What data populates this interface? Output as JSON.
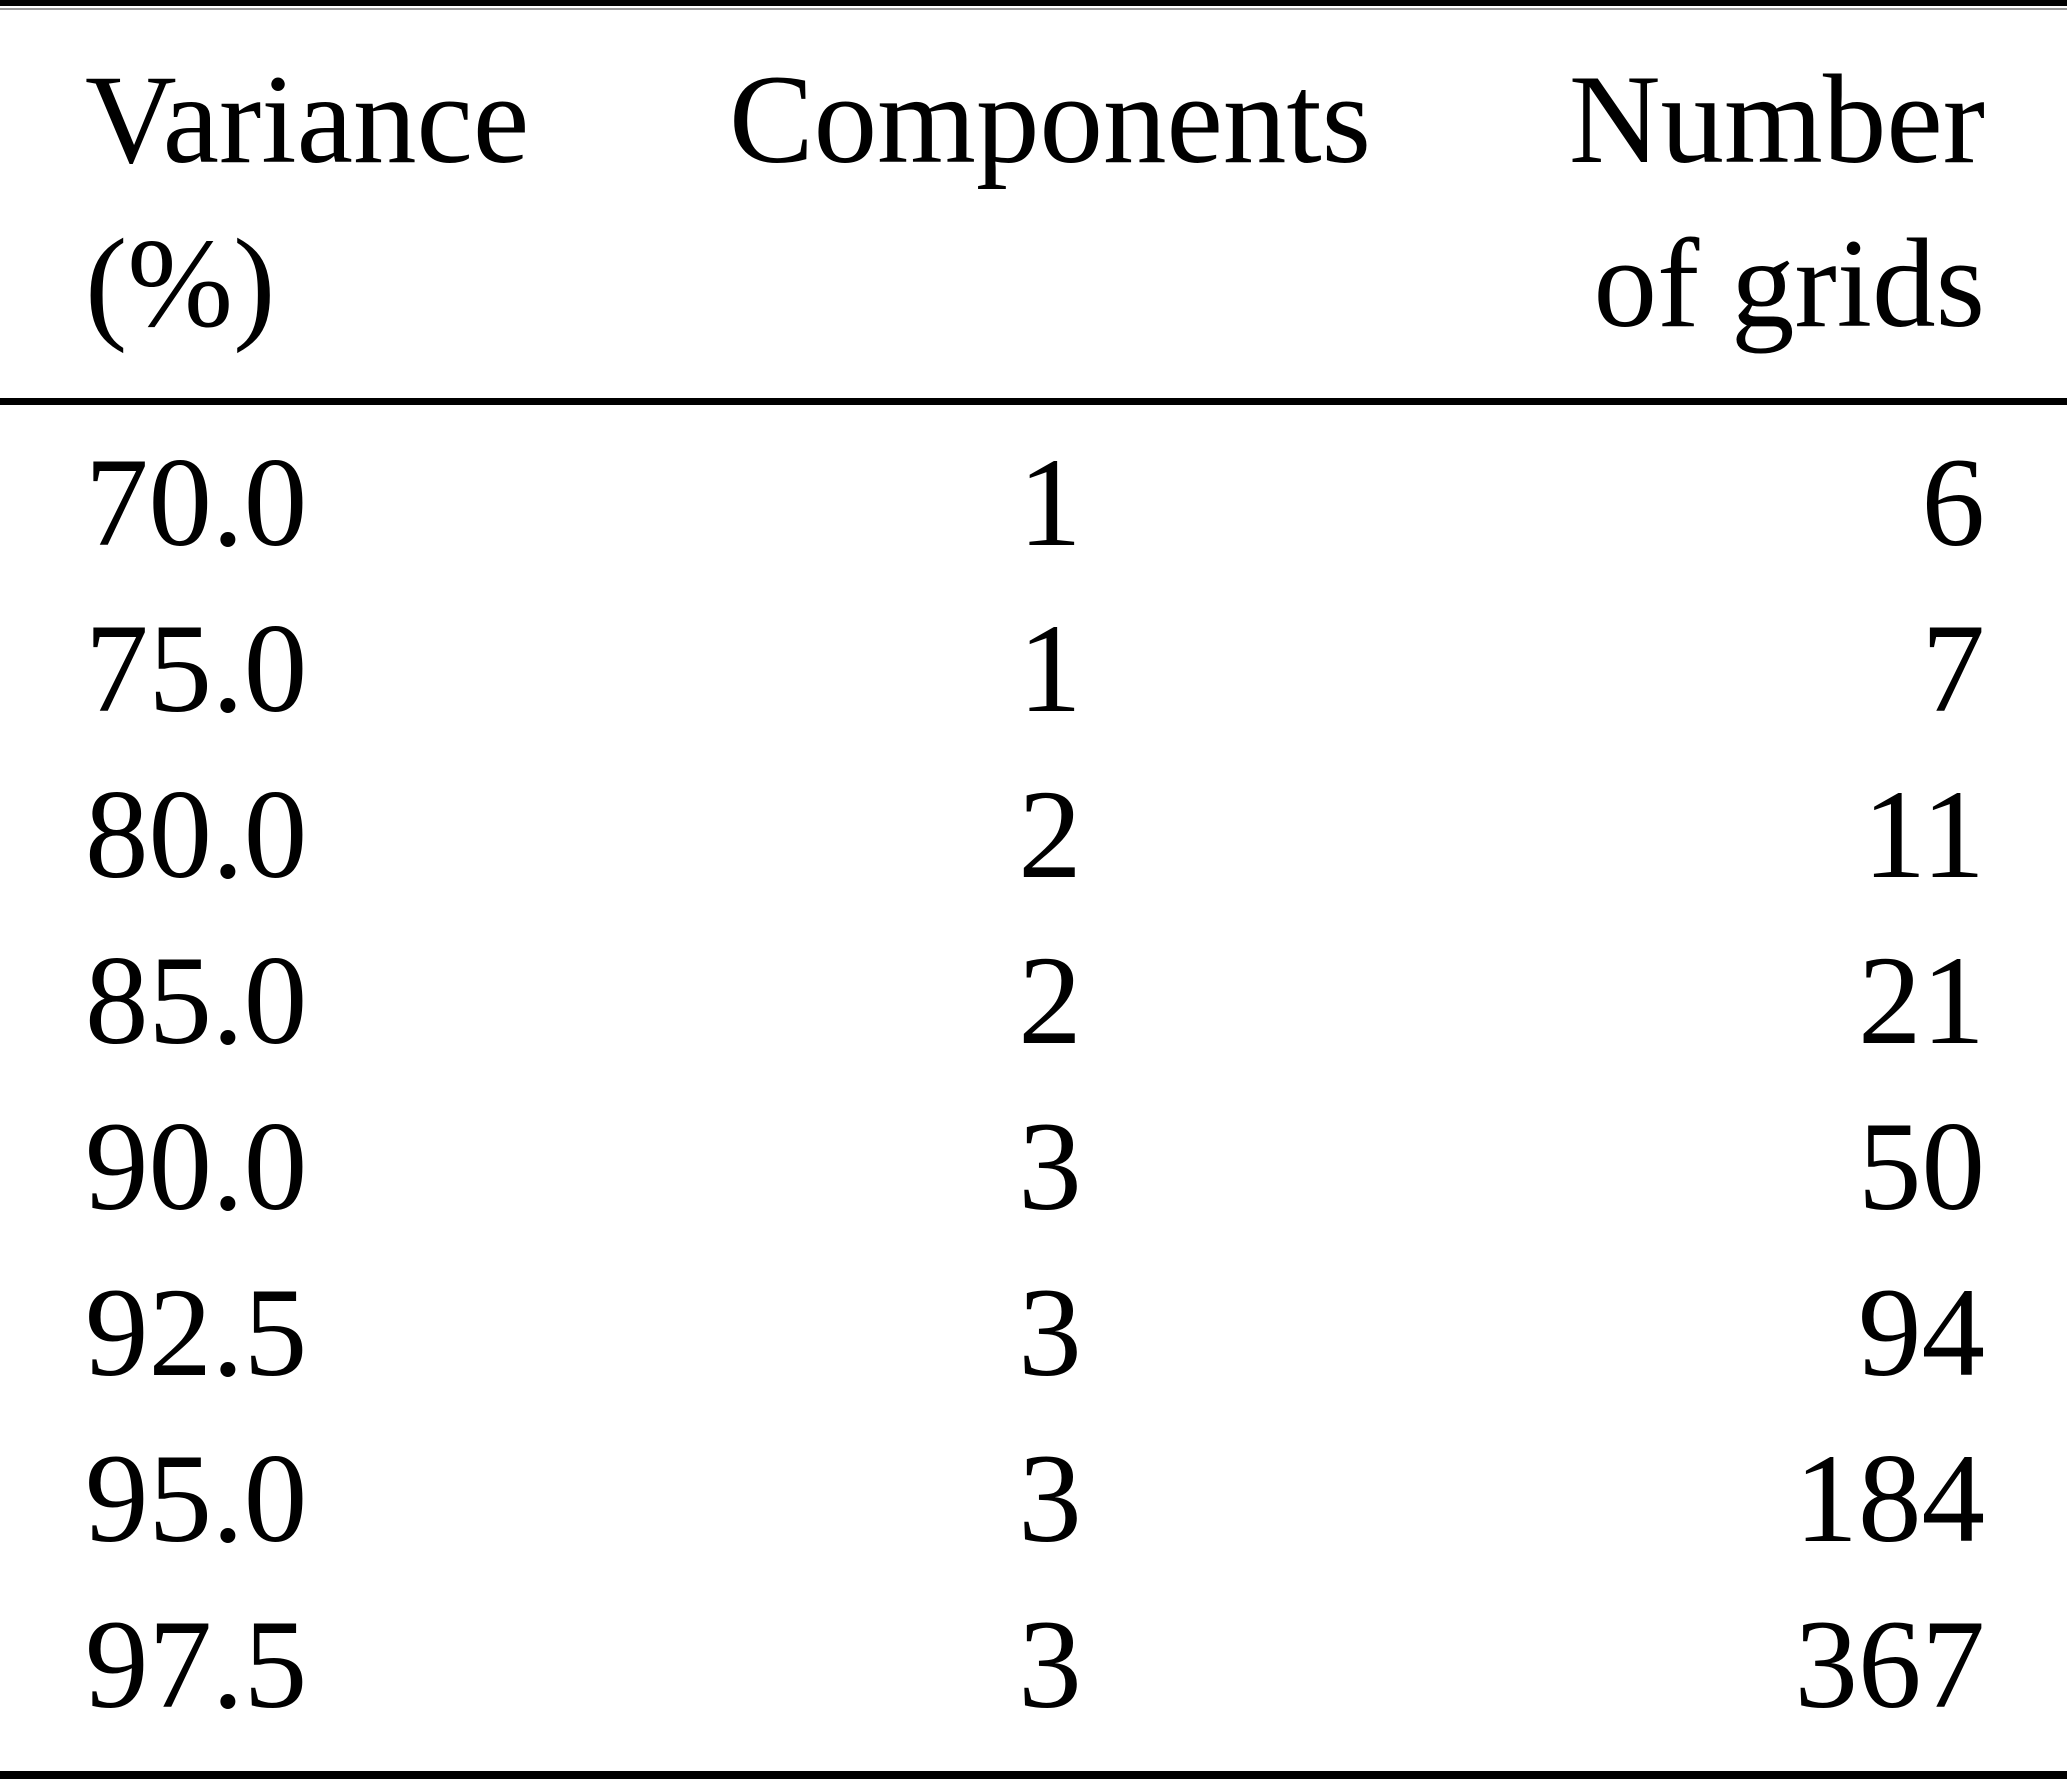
{
  "header": {
    "col1": {
      "line1": "Variance",
      "line2": "(%)"
    },
    "col2": {
      "line1": "Components"
    },
    "col3": {
      "line1": "Number",
      "line2": "of grids"
    }
  },
  "rows": [
    {
      "variance": "70.0",
      "components": "1",
      "grids": "6"
    },
    {
      "variance": "75.0",
      "components": "1",
      "grids": "7"
    },
    {
      "variance": "80.0",
      "components": "2",
      "grids": "11"
    },
    {
      "variance": "85.0",
      "components": "2",
      "grids": "21"
    },
    {
      "variance": "90.0",
      "components": "3",
      "grids": "50"
    },
    {
      "variance": "92.5",
      "components": "3",
      "grids": "94"
    },
    {
      "variance": "95.0",
      "components": "3",
      "grids": "184"
    },
    {
      "variance": "97.5",
      "components": "3",
      "grids": "367"
    }
  ],
  "chart_data": {
    "type": "table",
    "title": "",
    "columns": [
      "Variance (%)",
      "Components",
      "Number of grids"
    ],
    "records": [
      [
        70.0,
        1,
        6
      ],
      [
        75.0,
        1,
        7
      ],
      [
        80.0,
        2,
        11
      ],
      [
        85.0,
        2,
        21
      ],
      [
        90.0,
        3,
        50
      ],
      [
        92.5,
        3,
        94
      ],
      [
        95.0,
        3,
        184
      ],
      [
        97.5,
        3,
        367
      ]
    ]
  },
  "colors": {
    "text": "#000000",
    "rule_thick": "#000000",
    "rule_thin": "#999999",
    "background": "#ffffff"
  }
}
